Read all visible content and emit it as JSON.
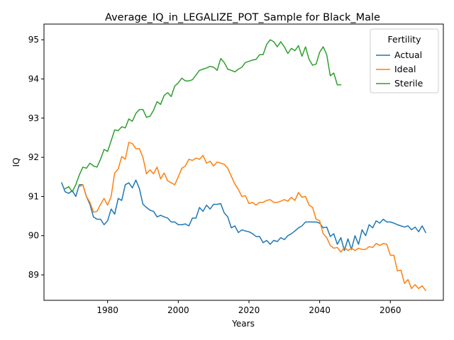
{
  "chart_data": {
    "type": "line",
    "title": "Average_IQ_in_LEGALIZE_POT_Sample for Black_Male",
    "xlabel": "Years",
    "ylabel": "IQ",
    "xlim": [
      1962,
      2075
    ],
    "ylim": [
      88.35,
      95.4
    ],
    "xticks": [
      1980,
      2000,
      2020,
      2040,
      2060
    ],
    "yticks": [
      89,
      90,
      91,
      92,
      93,
      94,
      95
    ],
    "grid": false,
    "legend": {
      "title": "Fertility",
      "placement": "top-right"
    },
    "colors": {
      "Actual": "#1f77b4",
      "Ideal": "#ff7f0e",
      "Sterile": "#2ca02c"
    },
    "series": [
      {
        "name": "Actual",
        "x": [
          1967,
          1968,
          1969,
          1970,
          1971,
          1972,
          1973,
          1974,
          1975,
          1976,
          1977,
          1978,
          1979,
          1980,
          1981,
          1982,
          1983,
          1984,
          1985,
          1986,
          1987,
          1988,
          1989,
          1990,
          1991,
          1992,
          1993,
          1994,
          1995,
          1996,
          1997,
          1998,
          1999,
          2000,
          2001,
          2002,
          2003,
          2004,
          2005,
          2006,
          2007,
          2008,
          2009,
          2010,
          2011,
          2012,
          2013,
          2014,
          2015,
          2016,
          2017,
          2018,
          2019,
          2020,
          2021,
          2022,
          2023,
          2024,
          2025,
          2026,
          2027,
          2028,
          2029,
          2030,
          2031,
          2032,
          2033,
          2034,
          2035,
          2036,
          2037,
          2038,
          2039,
          2040,
          2041,
          2042,
          2043,
          2044,
          2045,
          2046,
          2047,
          2048,
          2049,
          2050,
          2051,
          2052,
          2053,
          2054,
          2055,
          2056,
          2057,
          2058,
          2059,
          2060,
          2061,
          2062,
          2063,
          2064,
          2065,
          2066,
          2067,
          2068,
          2069,
          2070
        ],
        "y": [
          91.35,
          91.12,
          91.08,
          91.15,
          91.0,
          91.3,
          91.3,
          91.0,
          90.8,
          90.48,
          90.42,
          90.42,
          90.28,
          90.38,
          90.68,
          90.55,
          90.95,
          90.9,
          91.3,
          91.35,
          91.22,
          91.42,
          91.2,
          90.8,
          90.72,
          90.65,
          90.62,
          90.48,
          90.52,
          90.48,
          90.45,
          90.35,
          90.35,
          90.28,
          90.28,
          90.3,
          90.25,
          90.45,
          90.45,
          90.72,
          90.62,
          90.78,
          90.68,
          90.8,
          90.8,
          90.82,
          90.58,
          90.48,
          90.2,
          90.25,
          90.08,
          90.15,
          90.12,
          90.1,
          90.05,
          89.98,
          89.98,
          89.82,
          89.88,
          89.78,
          89.88,
          89.85,
          89.95,
          89.9,
          90.0,
          90.05,
          90.12,
          90.2,
          90.25,
          90.35,
          90.35,
          90.35,
          90.35,
          90.32,
          90.2,
          90.22,
          89.98,
          90.05,
          89.78,
          89.95,
          89.62,
          89.92,
          89.65,
          90.0,
          89.78,
          90.15,
          90.0,
          90.28,
          90.2,
          90.38,
          90.32,
          90.42,
          90.35,
          90.35,
          90.32,
          90.28,
          90.25,
          90.22,
          90.25,
          90.15,
          90.22,
          90.1,
          90.25,
          90.08
        ]
      },
      {
        "name": "Ideal",
        "x": [
          1972,
          1973,
          1974,
          1975,
          1976,
          1977,
          1978,
          1979,
          1980,
          1981,
          1982,
          1983,
          1984,
          1985,
          1986,
          1987,
          1988,
          1989,
          1990,
          1991,
          1992,
          1993,
          1994,
          1995,
          1996,
          1997,
          1998,
          1999,
          2000,
          2001,
          2002,
          2003,
          2004,
          2005,
          2006,
          2007,
          2008,
          2009,
          2010,
          2011,
          2012,
          2013,
          2014,
          2015,
          2016,
          2017,
          2018,
          2019,
          2020,
          2021,
          2022,
          2023,
          2024,
          2025,
          2026,
          2027,
          2028,
          2029,
          2030,
          2031,
          2032,
          2033,
          2034,
          2035,
          2036,
          2037,
          2038,
          2039,
          2040,
          2041,
          2042,
          2043,
          2044,
          2045,
          2046,
          2047,
          2048,
          2049,
          2050,
          2051,
          2052,
          2053,
          2054,
          2055,
          2056,
          2057,
          2058,
          2059,
          2060,
          2061,
          2062,
          2063,
          2064,
          2065,
          2066,
          2067,
          2068,
          2069,
          2070
        ],
        "y": [
          91.25,
          91.3,
          91.0,
          90.85,
          90.6,
          90.62,
          90.8,
          90.95,
          90.78,
          91.0,
          91.6,
          91.7,
          92.02,
          91.95,
          92.38,
          92.35,
          92.22,
          92.22,
          92.0,
          91.58,
          91.68,
          91.58,
          91.75,
          91.45,
          91.6,
          91.4,
          91.35,
          91.3,
          91.5,
          91.72,
          91.78,
          91.95,
          91.92,
          91.98,
          91.95,
          92.05,
          91.85,
          91.9,
          91.78,
          91.88,
          91.85,
          91.82,
          91.72,
          91.52,
          91.32,
          91.18,
          91.0,
          91.02,
          90.82,
          90.85,
          90.78,
          90.85,
          90.85,
          90.9,
          90.92,
          90.85,
          90.85,
          90.88,
          90.92,
          90.88,
          90.98,
          90.9,
          91.1,
          90.98,
          91.0,
          90.78,
          90.72,
          90.42,
          90.38,
          90.05,
          89.95,
          89.75,
          89.68,
          89.7,
          89.58,
          89.7,
          89.62,
          89.68,
          89.62,
          89.68,
          89.65,
          89.65,
          89.72,
          89.7,
          89.8,
          89.75,
          89.8,
          89.78,
          89.5,
          89.5,
          89.1,
          89.12,
          88.78,
          88.88,
          88.65,
          88.75,
          88.65,
          88.72,
          88.6
        ]
      },
      {
        "name": "Sterile",
        "x": [
          1968,
          1969,
          1970,
          1971,
          1972,
          1973,
          1974,
          1975,
          1976,
          1977,
          1978,
          1979,
          1980,
          1981,
          1982,
          1983,
          1984,
          1985,
          1986,
          1987,
          1988,
          1989,
          1990,
          1991,
          1992,
          1993,
          1994,
          1995,
          1996,
          1997,
          1998,
          1999,
          2000,
          2001,
          2002,
          2003,
          2004,
          2005,
          2006,
          2007,
          2008,
          2009,
          2010,
          2011,
          2012,
          2013,
          2014,
          2015,
          2016,
          2017,
          2018,
          2019,
          2020,
          2021,
          2022,
          2023,
          2024,
          2025,
          2026,
          2027,
          2028,
          2029,
          2030,
          2031,
          2032,
          2033,
          2034,
          2035,
          2036,
          2037,
          2038,
          2039,
          2040,
          2041,
          2042,
          2043,
          2044,
          2045,
          2046
        ],
        "y": [
          91.2,
          91.25,
          91.12,
          91.3,
          91.55,
          91.75,
          91.72,
          91.85,
          91.78,
          91.75,
          91.95,
          92.2,
          92.15,
          92.42,
          92.7,
          92.68,
          92.78,
          92.75,
          92.98,
          92.92,
          93.12,
          93.22,
          93.22,
          93.02,
          93.05,
          93.2,
          93.42,
          93.35,
          93.58,
          93.65,
          93.55,
          93.82,
          93.9,
          94.02,
          93.95,
          93.95,
          93.98,
          94.1,
          94.22,
          94.25,
          94.28,
          94.32,
          94.3,
          94.22,
          94.52,
          94.42,
          94.25,
          94.22,
          94.18,
          94.25,
          94.3,
          94.42,
          94.45,
          94.48,
          94.5,
          94.62,
          94.62,
          94.88,
          95.0,
          94.95,
          94.82,
          94.95,
          94.82,
          94.65,
          94.78,
          94.72,
          94.85,
          94.58,
          94.82,
          94.5,
          94.35,
          94.38,
          94.68,
          94.82,
          94.62,
          94.08,
          94.15,
          93.85,
          93.85
        ]
      }
    ]
  }
}
